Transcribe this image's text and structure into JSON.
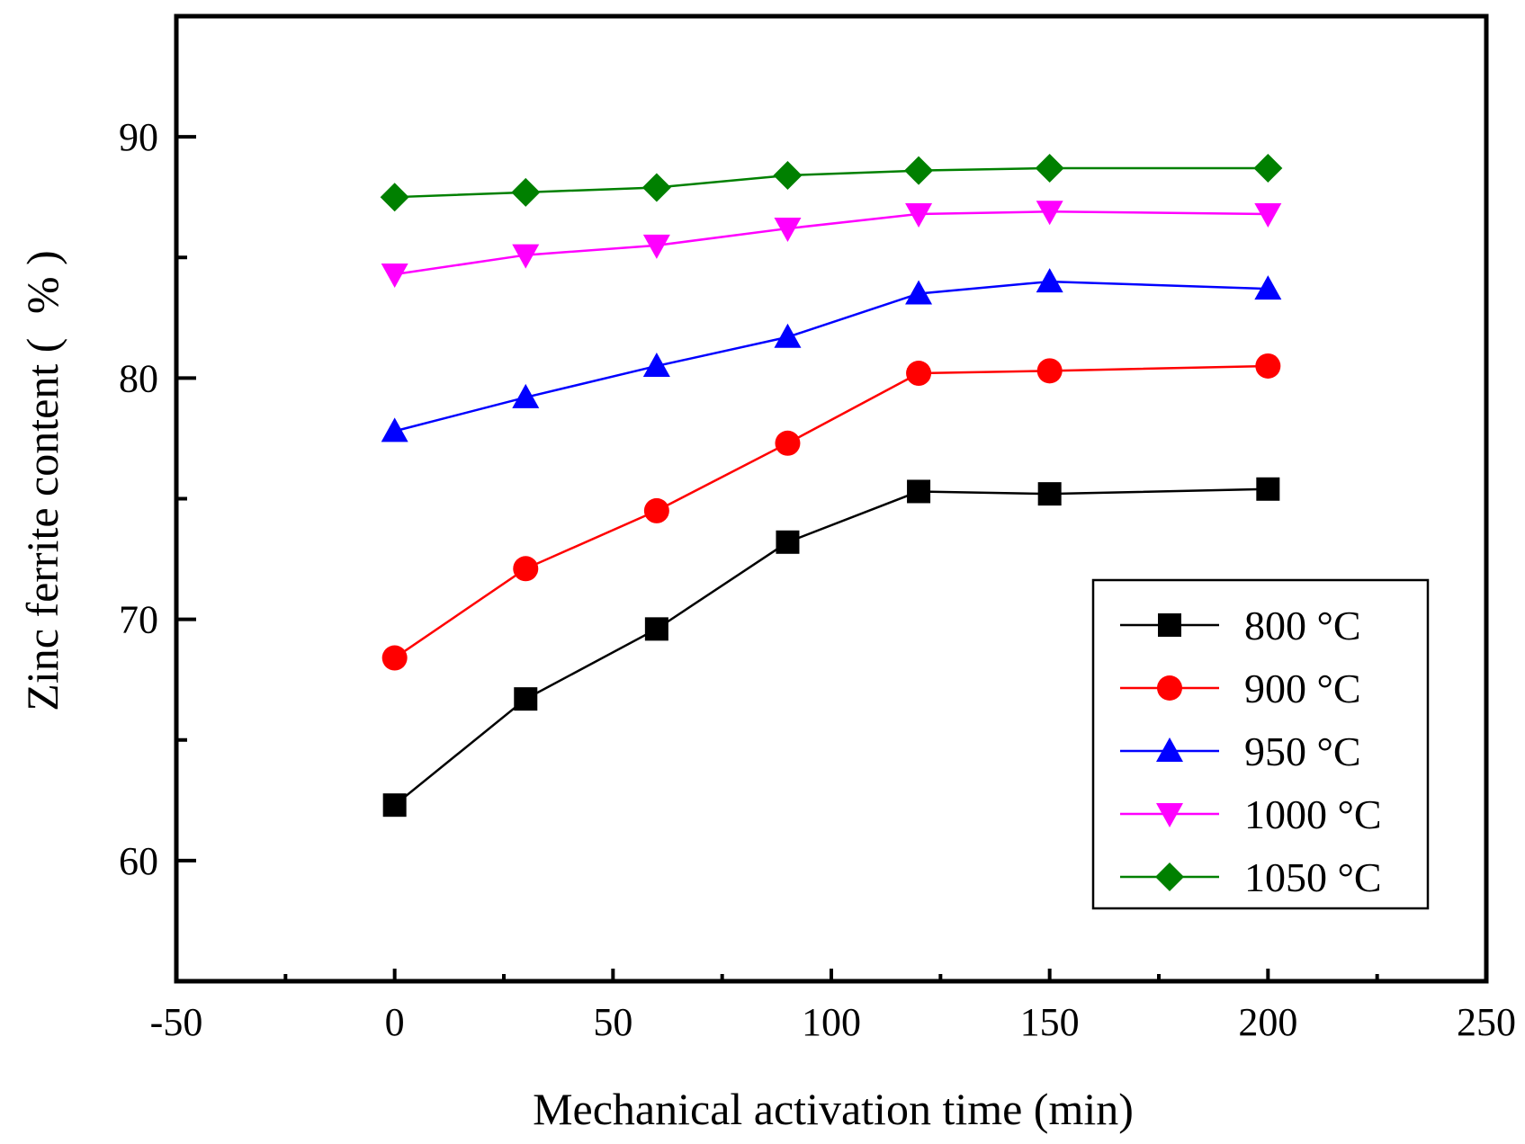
{
  "chart_data": {
    "type": "line",
    "title": "",
    "xlabel": "Mechanical activation time (min)",
    "ylabel": "Zinc ferrite content (%)",
    "ylabel_parts": {
      "main": "Zinc ferrite content",
      "paren_open": "(",
      "unit": "%",
      "paren_close": ")"
    },
    "xlim": [
      -50,
      250
    ],
    "ylim": [
      55,
      95
    ],
    "x_ticks": [
      -50,
      0,
      50,
      100,
      150,
      200,
      250
    ],
    "x_tick_labels": [
      "-50",
      "0",
      "50",
      "100",
      "150",
      "200",
      "250"
    ],
    "x_minor_ticks": [
      -25,
      25,
      75,
      125,
      175,
      225
    ],
    "y_ticks": [
      60,
      70,
      80,
      90
    ],
    "y_tick_labels": [
      "60",
      "70",
      "80",
      "90"
    ],
    "y_minor_ticks": [
      65,
      75,
      85
    ],
    "legend_position": "lower-right",
    "x": [
      0,
      30,
      60,
      90,
      120,
      150,
      200
    ],
    "series": [
      {
        "name": "800 °C",
        "color": "#000000",
        "marker": "square",
        "values": [
          62.3,
          66.7,
          69.6,
          73.2,
          75.3,
          75.2,
          75.4
        ]
      },
      {
        "name": "900 °C",
        "color": "#ff0000",
        "marker": "circle",
        "values": [
          68.4,
          72.1,
          74.5,
          77.3,
          80.2,
          80.3,
          80.5
        ]
      },
      {
        "name": "950 °C",
        "color": "#0000ff",
        "marker": "triangle-up",
        "values": [
          77.8,
          79.2,
          80.5,
          81.7,
          83.5,
          84.0,
          83.7
        ]
      },
      {
        "name": "1000 °C",
        "color": "#ff00ff",
        "marker": "triangle-down",
        "values": [
          84.3,
          85.1,
          85.5,
          86.2,
          86.8,
          86.9,
          86.8
        ]
      },
      {
        "name": "1050 °C",
        "color": "#008000",
        "marker": "diamond",
        "values": [
          87.5,
          87.7,
          87.9,
          88.4,
          88.6,
          88.7,
          88.7
        ]
      }
    ]
  }
}
